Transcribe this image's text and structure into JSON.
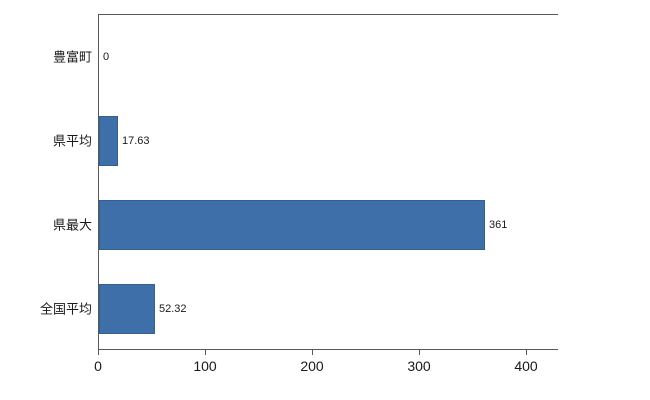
{
  "chart_data": {
    "type": "bar",
    "orientation": "horizontal",
    "title": "",
    "categories": [
      "豊富町",
      "県平均",
      "県最大",
      "全国平均"
    ],
    "values": [
      0,
      17.63,
      361,
      52.32
    ],
    "value_labels": [
      "0",
      "17.63",
      "361",
      "52.32"
    ],
    "xlabel": "",
    "ylabel": "",
    "xlim": [
      0,
      430
    ],
    "xticks": [
      0,
      100,
      200,
      300,
      400
    ],
    "xtick_labels": [
      "0",
      "100",
      "200",
      "300",
      "400"
    ],
    "grid": false,
    "legend": "none",
    "bar_color": "#3e6fa8",
    "bar_border_color": "#34608f",
    "axis_color": "#595959"
  }
}
